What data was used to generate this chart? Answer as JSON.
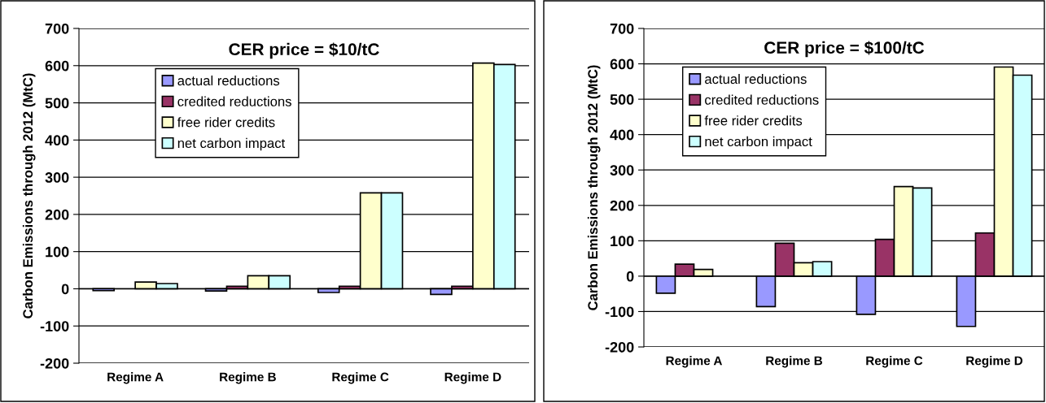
{
  "chart_data": [
    {
      "type": "bar",
      "title": "CER price = $10/tC",
      "ylabel": "Carbon Emissions through 2012 (MtC)",
      "categories": [
        "Regime A",
        "Regime B",
        "Regime C",
        "Regime D"
      ],
      "series": [
        {
          "name": "actual reductions",
          "color": "#9999ff",
          "values": [
            -5,
            -6,
            -10,
            -15
          ]
        },
        {
          "name": "credited reductions",
          "color": "#993366",
          "values": [
            null,
            7,
            7,
            7
          ]
        },
        {
          "name": "free rider credits",
          "color": "#ffffcc",
          "values": [
            18,
            35,
            258,
            607
          ]
        },
        {
          "name": "net carbon impact",
          "color": "#ccffff",
          "values": [
            14,
            35,
            258,
            603
          ]
        }
      ],
      "ylim": [
        -200,
        700
      ],
      "yticks": [
        -200,
        -100,
        0,
        100,
        200,
        300,
        400,
        500,
        600,
        700
      ],
      "grid": "y",
      "legend": "top left"
    },
    {
      "type": "bar",
      "title": "CER price = $100/tC",
      "ylabel": "Carbon Emissions through 2012 (MtC)",
      "categories": [
        "Regime A",
        "Regime B",
        "Regime C",
        "Regime D"
      ],
      "series": [
        {
          "name": "actual reductions",
          "color": "#9999ff",
          "values": [
            -48,
            -86,
            -108,
            -142
          ]
        },
        {
          "name": "credited reductions",
          "color": "#993366",
          "values": [
            34,
            93,
            104,
            122
          ]
        },
        {
          "name": "free rider credits",
          "color": "#ffffcc",
          "values": [
            19,
            38,
            253,
            591
          ]
        },
        {
          "name": "net carbon impact",
          "color": "#ccffff",
          "values": [
            null,
            41,
            249,
            568
          ]
        }
      ],
      "ylim": [
        -200,
        700
      ],
      "yticks": [
        -200,
        -100,
        0,
        100,
        200,
        300,
        400,
        500,
        600,
        700
      ],
      "grid": "y",
      "legend": "top left"
    }
  ]
}
